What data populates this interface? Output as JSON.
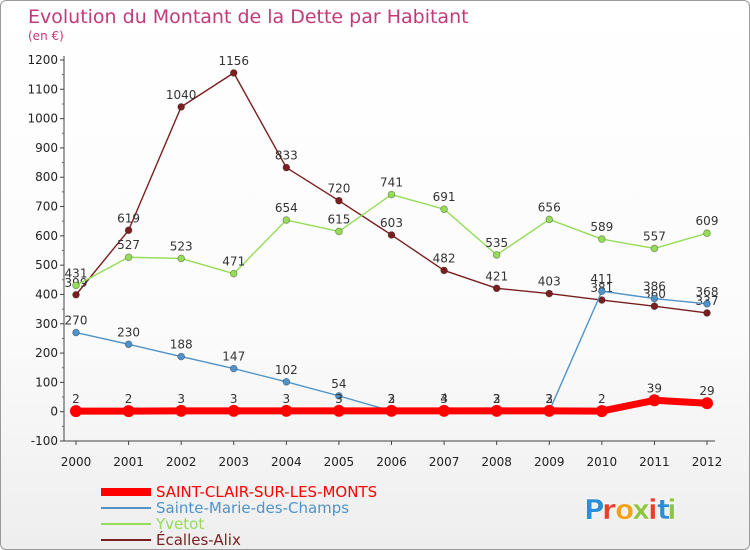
{
  "chart_data": {
    "type": "line",
    "title": "Evolution du Montant de la Dette par Habitant",
    "subtitle": "(en €)",
    "x": [
      "2000",
      "2001",
      "2002",
      "2003",
      "2004",
      "2005",
      "2006",
      "2007",
      "2008",
      "2009",
      "2010",
      "2011",
      "2012"
    ],
    "ylim": [
      -100,
      1200
    ],
    "yticks": [
      -100,
      0,
      100,
      200,
      300,
      400,
      500,
      600,
      700,
      800,
      900,
      1000,
      1100,
      1200
    ],
    "grid": false,
    "legend_placement": "bottom-left",
    "series": [
      {
        "name": "SAINT-CLAIR-SUR-LES-MONTS",
        "color": "#ff0000",
        "values": [
          2,
          2,
          3,
          3,
          3,
          3,
          3,
          3,
          3,
          3,
          2,
          39,
          29
        ],
        "labels": [
          "2",
          "2",
          "3",
          "3",
          "3",
          "3",
          "3",
          "3",
          "3",
          "3",
          "2",
          "39",
          "29"
        ]
      },
      {
        "name": "Sainte-Marie-des-Champs",
        "color": "#4f93c9",
        "values": [
          270,
          230,
          188,
          147,
          102,
          54,
          2,
          4,
          2,
          2,
          411,
          386,
          368
        ],
        "labels": [
          "270",
          "230",
          "188",
          "147",
          "102",
          "54",
          "2",
          "4",
          "2",
          "2",
          "411",
          "386",
          "368"
        ]
      },
      {
        "name": "Yvetot",
        "color": "#95dc59",
        "values": [
          431,
          527,
          523,
          471,
          654,
          615,
          741,
          691,
          535,
          656,
          589,
          557,
          609
        ],
        "labels": [
          "431",
          "527",
          "523",
          "471",
          "654",
          "615",
          "741",
          "691",
          "535",
          "656",
          "589",
          "557",
          "609"
        ]
      },
      {
        "name": "Écalles-Alix",
        "color": "#7a1f1f",
        "values": [
          399,
          619,
          1040,
          1156,
          833,
          720,
          603,
          482,
          421,
          403,
          381,
          360,
          337
        ],
        "labels": [
          "399",
          "619",
          "1040",
          "1156",
          "833",
          "720",
          "603",
          "482",
          "421",
          "403",
          "381",
          "360",
          "337"
        ]
      }
    ]
  },
  "brand": {
    "logo_letters": [
      "P",
      "r",
      "o",
      "x",
      "i",
      "t",
      "i"
    ],
    "logo_colors": [
      "#2c8fd6",
      "#e8412b",
      "#f3a21b",
      "#8dc63f",
      "#e8412b",
      "#2c8fd6",
      "#8dc63f"
    ]
  }
}
